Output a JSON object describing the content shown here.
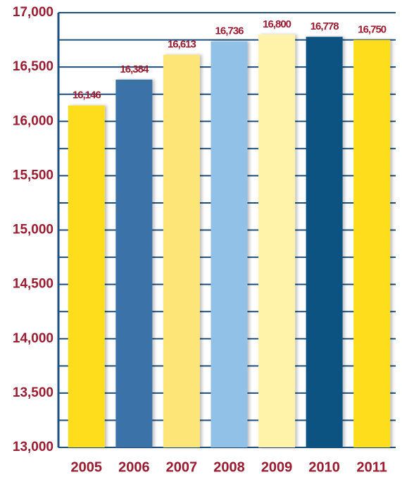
{
  "chart_data": {
    "type": "bar",
    "categories": [
      "2005",
      "2006",
      "2007",
      "2008",
      "2009",
      "2010",
      "2011"
    ],
    "values": [
      16146,
      16384,
      16613,
      16736,
      16800,
      16778,
      16750
    ],
    "value_labels": [
      "16,146",
      "16,384",
      "16,613",
      "16,736",
      "16,800",
      "16,778",
      "16,750"
    ],
    "colors": [
      "#fedd1a",
      "#3a72a8",
      "#fde577",
      "#91c1e7",
      "#fef3a8",
      "#0b5282",
      "#fedd1a"
    ],
    "ylim": [
      13000,
      17000
    ],
    "yticks": [
      {
        "value": 13000,
        "label": "13,000"
      },
      {
        "value": 13500,
        "label": "13,500"
      },
      {
        "value": 14000,
        "label": "14,000"
      },
      {
        "value": 14500,
        "label": "14,500"
      },
      {
        "value": 15000,
        "label": "15,000"
      },
      {
        "value": 15500,
        "label": "15,500"
      },
      {
        "value": 16000,
        "label": "16,000"
      },
      {
        "value": 16500,
        "label": "16,500"
      },
      {
        "value": 17000,
        "label": "17,000"
      }
    ],
    "minor_yticks": [
      13250,
      13750,
      14250,
      14750,
      15250,
      15750,
      16250,
      16750
    ],
    "grid": true
  }
}
